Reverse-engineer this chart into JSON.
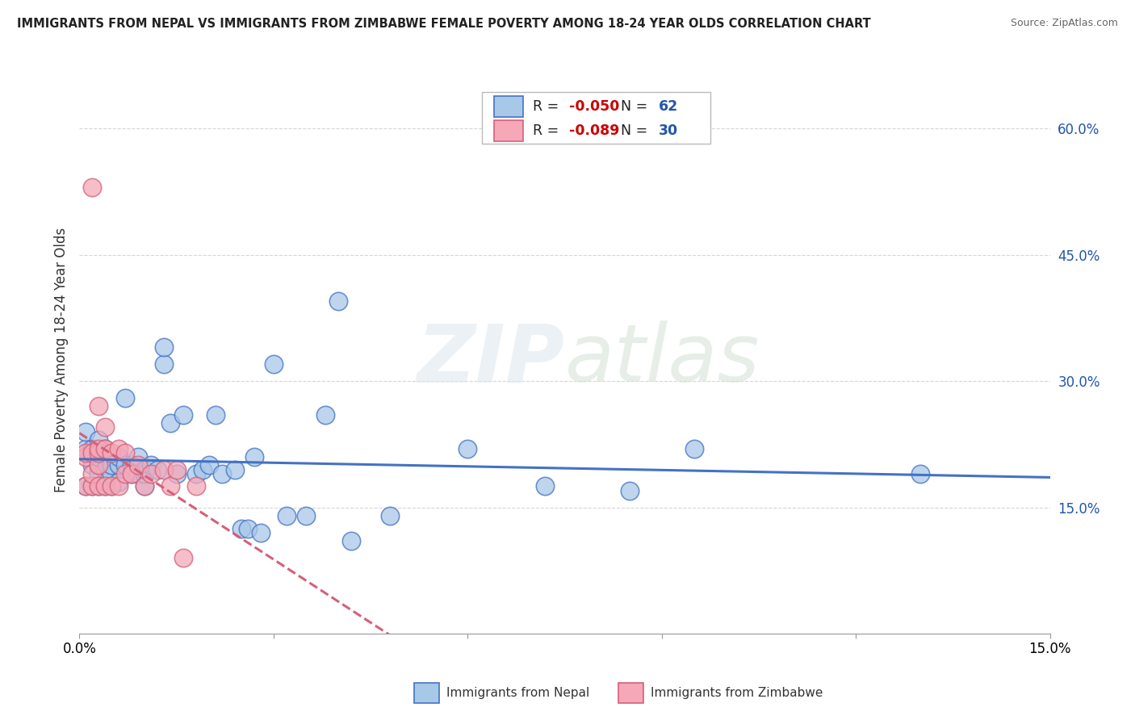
{
  "title": "IMMIGRANTS FROM NEPAL VS IMMIGRANTS FROM ZIMBABWE FEMALE POVERTY AMONG 18-24 YEAR OLDS CORRELATION CHART",
  "source": "Source: ZipAtlas.com",
  "xlabel_nepal": "Immigrants from Nepal",
  "xlabel_zimbabwe": "Immigrants from Zimbabwe",
  "ylabel": "Female Poverty Among 18-24 Year Olds",
  "nepal_R": -0.05,
  "nepal_N": 62,
  "zimbabwe_R": -0.089,
  "zimbabwe_N": 30,
  "nepal_color": "#a8c8e8",
  "zimbabwe_color": "#f4a8b8",
  "nepal_line_color": "#4472c4",
  "zimbabwe_line_color": "#d4607a",
  "xlim": [
    0,
    0.15
  ],
  "ylim": [
    0,
    0.65
  ],
  "y_ticks_right": [
    0.15,
    0.3,
    0.45,
    0.6
  ],
  "nepal_x": [
    0.001,
    0.001,
    0.001,
    0.002,
    0.002,
    0.002,
    0.002,
    0.002,
    0.003,
    0.003,
    0.003,
    0.003,
    0.003,
    0.003,
    0.004,
    0.004,
    0.004,
    0.004,
    0.005,
    0.005,
    0.005,
    0.006,
    0.006,
    0.006,
    0.007,
    0.007,
    0.008,
    0.008,
    0.009,
    0.009,
    0.01,
    0.01,
    0.01,
    0.011,
    0.012,
    0.013,
    0.013,
    0.014,
    0.015,
    0.016,
    0.018,
    0.019,
    0.02,
    0.021,
    0.022,
    0.024,
    0.025,
    0.026,
    0.027,
    0.028,
    0.03,
    0.032,
    0.035,
    0.038,
    0.04,
    0.042,
    0.048,
    0.06,
    0.072,
    0.085,
    0.095,
    0.13
  ],
  "nepal_y": [
    0.175,
    0.22,
    0.24,
    0.175,
    0.2,
    0.215,
    0.215,
    0.22,
    0.175,
    0.19,
    0.2,
    0.21,
    0.215,
    0.23,
    0.175,
    0.18,
    0.195,
    0.22,
    0.175,
    0.19,
    0.2,
    0.18,
    0.2,
    0.21,
    0.2,
    0.28,
    0.19,
    0.2,
    0.19,
    0.21,
    0.175,
    0.19,
    0.195,
    0.2,
    0.195,
    0.32,
    0.34,
    0.25,
    0.19,
    0.26,
    0.19,
    0.195,
    0.2,
    0.26,
    0.19,
    0.195,
    0.125,
    0.125,
    0.21,
    0.12,
    0.32,
    0.14,
    0.14,
    0.26,
    0.395,
    0.11,
    0.14,
    0.22,
    0.175,
    0.17,
    0.22,
    0.19
  ],
  "zimbabwe_x": [
    0.001,
    0.001,
    0.001,
    0.002,
    0.002,
    0.002,
    0.002,
    0.003,
    0.003,
    0.003,
    0.003,
    0.003,
    0.004,
    0.004,
    0.004,
    0.005,
    0.005,
    0.006,
    0.006,
    0.007,
    0.007,
    0.008,
    0.009,
    0.01,
    0.011,
    0.013,
    0.014,
    0.015,
    0.016,
    0.018
  ],
  "zimbabwe_y": [
    0.175,
    0.21,
    0.215,
    0.175,
    0.19,
    0.215,
    0.53,
    0.175,
    0.2,
    0.215,
    0.22,
    0.27,
    0.175,
    0.22,
    0.245,
    0.175,
    0.215,
    0.175,
    0.22,
    0.19,
    0.215,
    0.19,
    0.2,
    0.175,
    0.19,
    0.195,
    0.175,
    0.195,
    0.09,
    0.175
  ],
  "watermark_zip": "ZIP",
  "watermark_atlas": "atlas",
  "background_color": "#ffffff",
  "grid_color": "#cccccc",
  "legend_border_color": "#bbbbbb",
  "r_value_color": "#cc0000",
  "n_value_color": "#2255aa"
}
